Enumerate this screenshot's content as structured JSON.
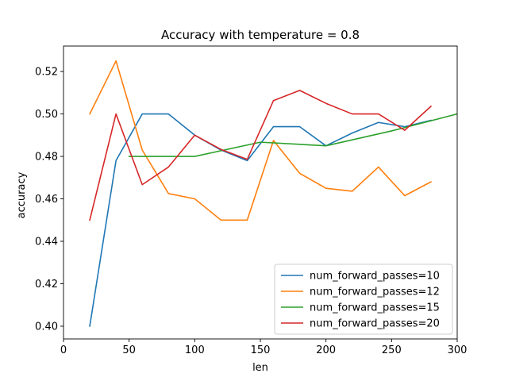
{
  "chart_data": {
    "type": "line",
    "title": "Accuracy with temperature = 0.8",
    "xlabel": "len",
    "ylabel": "accuracy",
    "xlim": [
      0,
      300
    ],
    "ylim": [
      0.394,
      0.532
    ],
    "xticks": [
      0,
      50,
      100,
      150,
      200,
      250,
      300
    ],
    "xtick_labels": [
      "0",
      "50",
      "100",
      "150",
      "200",
      "250",
      "300"
    ],
    "yticks": [
      0.4,
      0.42,
      0.44,
      0.46,
      0.48,
      0.5,
      0.52
    ],
    "ytick_labels": [
      "0.40",
      "0.42",
      "0.44",
      "0.46",
      "0.48",
      "0.50",
      "0.52"
    ],
    "grid": false,
    "legend_position": "lower-right",
    "series": [
      {
        "name": "num_forward_passes=10",
        "color": "#1f77b4",
        "x": [
          20,
          40,
          60,
          80,
          100,
          120,
          140,
          160,
          180,
          200,
          220,
          240,
          260,
          280
        ],
        "y": [
          0.4,
          0.478,
          0.5,
          0.5,
          0.49,
          0.483,
          0.478,
          0.494,
          0.494,
          0.485,
          0.491,
          0.496,
          0.494,
          0.497
        ]
      },
      {
        "name": "num_forward_passes=12",
        "color": "#ff7f0e",
        "x": [
          20,
          40,
          60,
          80,
          100,
          120,
          140,
          160,
          180,
          200,
          220,
          240,
          260,
          280
        ],
        "y": [
          0.5,
          0.525,
          0.483,
          0.4625,
          0.46,
          0.45,
          0.45,
          0.4875,
          0.472,
          0.465,
          0.4636,
          0.475,
          0.4615,
          0.468
        ]
      },
      {
        "name": "num_forward_passes=15",
        "color": "#2ca02c",
        "x": [
          50,
          100,
          150,
          200,
          250,
          300
        ],
        "y": [
          0.48,
          0.48,
          0.4867,
          0.485,
          0.492,
          0.5
        ]
      },
      {
        "name": "num_forward_passes=20",
        "color": "#d62728",
        "x": [
          20,
          40,
          60,
          80,
          100,
          120,
          140,
          160,
          180,
          200,
          220,
          240,
          260,
          280
        ],
        "y": [
          0.45,
          0.5,
          0.4667,
          0.475,
          0.49,
          0.4833,
          0.4786,
          0.5063,
          0.5111,
          0.505,
          0.5,
          0.5,
          0.4923,
          0.5036
        ]
      }
    ]
  }
}
